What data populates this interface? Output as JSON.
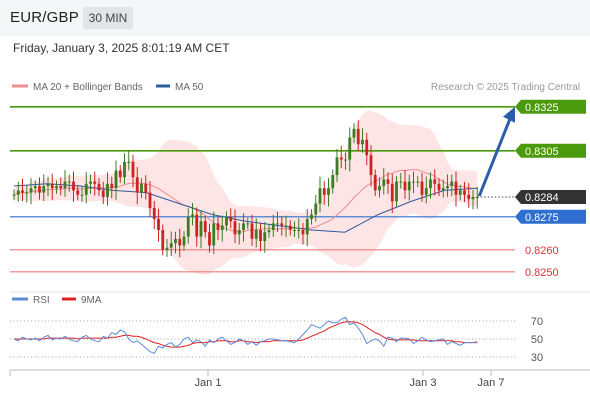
{
  "header": {
    "symbol": "EUR/GBP",
    "timeframe": "30 MIN",
    "timestamp": "Friday, January 3, 2025 8:01:19 AM CET"
  },
  "legend": {
    "ma20_label": "MA 20 + Bollinger Bands",
    "ma50_label": "MA 50",
    "credit": "Research © 2025 Trading Central",
    "rsi_label": "RSI",
    "rsi_ma_label": "9MA"
  },
  "colors": {
    "ma20": "#f08c8c",
    "ma50": "#2e5a9e",
    "bollinger_fill": "#fde1e1",
    "candle_up": "#3a7d22",
    "candle_down": "#cc2222",
    "resistance": "#4a9a0c",
    "pivot": "#2f6fd1",
    "support": "#ef7b7b",
    "price_badge": "#333333",
    "rsi": "#5b8bd9",
    "rsi_ma": "#e02020",
    "arrow": "#2b5ea7"
  },
  "chart_data": [
    {
      "type": "candlestick",
      "title": "EUR/GBP",
      "timeframe": "30 MIN",
      "x_ticks": [
        "Jan 1",
        "Jan 3",
        "Jan 7"
      ],
      "ylim": [
        0.8244,
        0.8329
      ],
      "levels": [
        {
          "value": 0.8325,
          "label": "0.8325",
          "kind": "resistance"
        },
        {
          "value": 0.8305,
          "label": "0.8305",
          "kind": "resistance"
        },
        {
          "value": 0.8284,
          "label": "0.8284",
          "kind": "last_price"
        },
        {
          "value": 0.8275,
          "label": "0.8275",
          "kind": "pivot"
        },
        {
          "value": 0.826,
          "label": "0.8260",
          "kind": "support"
        },
        {
          "value": 0.825,
          "label": "0.8250",
          "kind": "support"
        }
      ],
      "close": [
        0.8285,
        0.8287,
        0.8286,
        0.8286,
        0.8288,
        0.8289,
        0.8286,
        0.8289,
        0.829,
        0.8288,
        0.8289,
        0.8288,
        0.8291,
        0.8291,
        0.8287,
        0.8285,
        0.8285,
        0.829,
        0.8291,
        0.829,
        0.8287,
        0.8284,
        0.829,
        0.8288,
        0.8296,
        0.8293,
        0.83,
        0.83,
        0.8293,
        0.8286,
        0.829,
        0.8286,
        0.8279,
        0.8274,
        0.8269,
        0.826,
        0.8261,
        0.8263,
        0.8265,
        0.8262,
        0.8266,
        0.8275,
        0.8276,
        0.8266,
        0.8273,
        0.8268,
        0.8262,
        0.8272,
        0.8269,
        0.8271,
        0.8275,
        0.8273,
        0.8267,
        0.8269,
        0.8272,
        0.8272,
        0.8265,
        0.8269,
        0.8264,
        0.8268,
        0.8269,
        0.8272,
        0.8272,
        0.8271,
        0.8271,
        0.8269,
        0.8269,
        0.8269,
        0.8267,
        0.8274,
        0.8276,
        0.8281,
        0.8288,
        0.8285,
        0.8288,
        0.8294,
        0.8302,
        0.8301,
        0.8301,
        0.8311,
        0.8315,
        0.8308,
        0.831,
        0.8303,
        0.8294,
        0.8287,
        0.8289,
        0.8292,
        0.829,
        0.8282,
        0.8291,
        0.8291,
        0.8287,
        0.8291,
        0.8291,
        0.8291,
        0.8285,
        0.8288,
        0.8292,
        0.829,
        0.8287,
        0.8288,
        0.8289,
        0.8291,
        0.8285,
        0.8287,
        0.8285,
        0.8283,
        0.8284,
        0.8284
      ],
      "ma50_approx": [
        0.8289,
        0.829,
        0.8289,
        0.8287,
        0.8286,
        0.8281,
        0.8276,
        0.8273,
        0.8271,
        0.8269,
        0.8268,
        0.8276,
        0.8282,
        0.8287,
        0.8288
      ],
      "x_ticks_tail": [
        "Jan 3",
        "Jan 7"
      ],
      "forecast_target": 0.8325
    },
    {
      "type": "line",
      "title": "RSI",
      "series": [
        {
          "name": "RSI"
        },
        {
          "name": "9MA"
        }
      ],
      "yticks": [
        70,
        50,
        30
      ],
      "ylim": [
        20,
        80
      ],
      "rsi": [
        50,
        48,
        52,
        50,
        49,
        51,
        48,
        52,
        54,
        49,
        51,
        50,
        53,
        50,
        48,
        47,
        52,
        54,
        50,
        48,
        47,
        53,
        51,
        57,
        55,
        60,
        58,
        50,
        46,
        48,
        44,
        40,
        36,
        34,
        42,
        40,
        44,
        46,
        41,
        44,
        50,
        52,
        46,
        49,
        47,
        42,
        49,
        46,
        50,
        52,
        48,
        44,
        46,
        50,
        48,
        44,
        47,
        43,
        47,
        48,
        50,
        50,
        49,
        48,
        48,
        47,
        46,
        50,
        55,
        60,
        66,
        64,
        62,
        66,
        70,
        68,
        68,
        72,
        74,
        66,
        68,
        62,
        55,
        45,
        48,
        50,
        48,
        42,
        52,
        51,
        47,
        51,
        51,
        50,
        45,
        48,
        52,
        49,
        47,
        48,
        49,
        50,
        44,
        47,
        45,
        43,
        46,
        46,
        46,
        47
      ],
      "rsi_9ma": [
        50,
        50,
        50,
        50,
        50,
        50,
        50,
        50,
        51,
        51,
        51,
        51,
        51,
        51,
        51,
        50,
        51,
        51,
        51,
        51,
        51,
        51,
        51,
        52,
        52,
        53,
        54,
        54,
        53,
        53,
        52,
        50,
        48,
        46,
        45,
        43,
        42,
        41,
        41,
        41,
        42,
        43,
        45,
        46,
        46,
        46,
        47,
        47,
        48,
        48,
        48,
        47,
        47,
        48,
        48,
        47,
        47,
        46,
        47,
        47,
        47,
        48,
        48,
        48,
        48,
        48,
        48,
        48,
        49,
        51,
        53,
        55,
        57,
        59,
        62,
        64,
        66,
        68,
        69,
        69,
        69,
        68,
        66,
        63,
        60,
        57,
        55,
        52,
        50,
        49,
        49,
        49,
        49,
        49,
        49,
        48,
        48,
        48,
        48,
        48,
        48,
        48,
        48,
        48,
        47,
        47,
        46,
        46,
        46,
        46
      ]
    }
  ]
}
